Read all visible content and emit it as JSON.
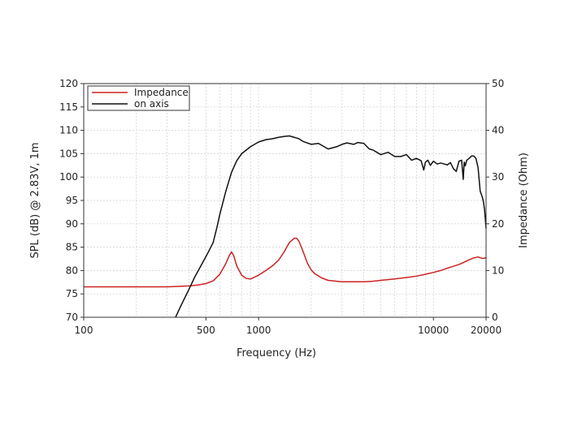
{
  "chart_data": {
    "type": "line",
    "xlabel": "Frequency (Hz)",
    "ylabel": "SPL (dB) @ 2.83V, 1m",
    "y2label": "Impedance (Ohm)",
    "x_scale": "log",
    "xlim": [
      100,
      20000
    ],
    "ylim": [
      70,
      120
    ],
    "y2lim": [
      0,
      50
    ],
    "x_ticks": [
      100,
      500,
      1000,
      10000,
      20000
    ],
    "x_tick_labels": [
      "100",
      "500",
      "1000",
      "10000",
      "20000"
    ],
    "y_ticks": [
      70,
      75,
      80,
      85,
      90,
      95,
      100,
      105,
      110,
      115,
      120
    ],
    "y2_ticks": [
      0,
      10,
      20,
      30,
      40,
      50
    ],
    "grid": true,
    "legend_position": "top-left",
    "series": [
      {
        "name": "Impedance",
        "axis": "right",
        "color": "#cc2222",
        "x": [
          100,
          200,
          300,
          400,
          450,
          500,
          550,
          600,
          650,
          680,
          700,
          720,
          750,
          800,
          850,
          900,
          950,
          1000,
          1100,
          1200,
          1300,
          1400,
          1500,
          1600,
          1650,
          1700,
          1800,
          1900,
          2000,
          2100,
          2300,
          2500,
          2800,
          3000,
          3500,
          4000,
          4500,
          5000,
          6000,
          7000,
          8000,
          9000,
          10000,
          11000,
          12000,
          13000,
          14000,
          15000,
          16000,
          17000,
          18000,
          19000,
          19500,
          20000
        ],
        "y": [
          6.5,
          6.5,
          6.5,
          6.7,
          6.9,
          7.2,
          7.8,
          9.2,
          11.5,
          13.2,
          14.0,
          13.2,
          11.0,
          9.0,
          8.3,
          8.2,
          8.6,
          9.0,
          10.0,
          11.0,
          12.2,
          14.0,
          16.0,
          16.9,
          16.9,
          16.3,
          14.0,
          11.6,
          10.1,
          9.3,
          8.4,
          7.9,
          7.7,
          7.6,
          7.6,
          7.6,
          7.7,
          7.9,
          8.2,
          8.5,
          8.8,
          9.2,
          9.6,
          10.0,
          10.5,
          10.9,
          11.3,
          11.8,
          12.3,
          12.7,
          12.9,
          12.6,
          12.6,
          12.8
        ]
      },
      {
        "name": "on axis",
        "axis": "left",
        "color": "#111111",
        "x": [
          335,
          360,
          400,
          430,
          460,
          500,
          520,
          550,
          580,
          600,
          650,
          700,
          750,
          800,
          900,
          1000,
          1100,
          1200,
          1300,
          1400,
          1500,
          1600,
          1700,
          1800,
          2000,
          2200,
          2500,
          2800,
          3000,
          3200,
          3500,
          3700,
          4000,
          4300,
          4500,
          5000,
          5500,
          6000,
          6500,
          7000,
          7500,
          8000,
          8500,
          8800,
          9000,
          9300,
          9600,
          10000,
          10500,
          11000,
          11500,
          12000,
          12500,
          13000,
          13500,
          14000,
          14500,
          14800,
          15000,
          15200,
          15500,
          16000,
          16500,
          17000,
          17500,
          18000,
          18500,
          19000,
          19300,
          19600,
          19800,
          20000
        ],
        "y": [
          70,
          72.5,
          76,
          78.5,
          80.5,
          83,
          84.2,
          86,
          89.5,
          92,
          97,
          101,
          103.5,
          105,
          106.5,
          107.5,
          108,
          108.2,
          108.5,
          108.7,
          108.8,
          108.5,
          108.2,
          107.6,
          107,
          107.2,
          106,
          106.5,
          107,
          107.3,
          107,
          107.4,
          107.2,
          106,
          105.8,
          104.8,
          105.3,
          104.4,
          104.4,
          104.8,
          103.6,
          104,
          103.5,
          101.5,
          103.2,
          103.6,
          102.5,
          103.4,
          102.8,
          103,
          102.8,
          102.6,
          103.1,
          101.8,
          101.2,
          103.4,
          103.6,
          99.5,
          103.2,
          102.4,
          103.6,
          104,
          104.5,
          104.5,
          104,
          102,
          97,
          95.8,
          94.8,
          93,
          91,
          89
        ]
      }
    ]
  }
}
